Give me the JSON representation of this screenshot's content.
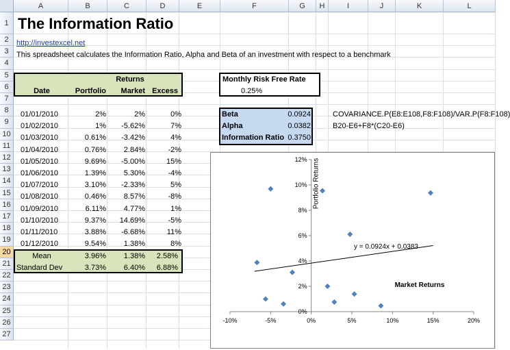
{
  "columns": [
    "A",
    "B",
    "C",
    "D",
    "E",
    "F",
    "G",
    "H",
    "I",
    "J",
    "K",
    "L"
  ],
  "rows": [
    "1",
    "2",
    "3",
    "4",
    "5",
    "6",
    "7",
    "8",
    "9",
    "10",
    "11",
    "12",
    "13",
    "14",
    "15",
    "16",
    "17",
    "18",
    "19",
    "20",
    "21",
    "22",
    "23",
    "24",
    "25",
    "26",
    "27"
  ],
  "title": "The Information Ratio",
  "link": "http://investexcel.net",
  "description": "This spreadsheet calculates the Information Ratio, Alpha and Beta of an investment with respect to a benchmark",
  "returns_header": "Returns",
  "headers": {
    "date": "Date",
    "portfolio": "Portfolio",
    "market": "Market",
    "excess": "Excess"
  },
  "data_rows": [
    {
      "date": "01/01/2010",
      "portfolio": "2%",
      "market": "2%",
      "excess": "0%"
    },
    {
      "date": "01/02/2010",
      "portfolio": "1%",
      "market": "-5.62%",
      "excess": "7%"
    },
    {
      "date": "01/03/2010",
      "portfolio": "0.61%",
      "market": "-3.42%",
      "excess": "4%"
    },
    {
      "date": "01/04/2010",
      "portfolio": "0.76%",
      "market": "2.84%",
      "excess": "-2%"
    },
    {
      "date": "01/05/2010",
      "portfolio": "9.69%",
      "market": "-5.00%",
      "excess": "15%"
    },
    {
      "date": "01/06/2010",
      "portfolio": "1.39%",
      "market": "5.30%",
      "excess": "-4%"
    },
    {
      "date": "01/07/2010",
      "portfolio": "3.10%",
      "market": "-2.33%",
      "excess": "5%"
    },
    {
      "date": "01/08/2010",
      "portfolio": "0.46%",
      "market": "8.57%",
      "excess": "-8%"
    },
    {
      "date": "01/09/2010",
      "portfolio": "6.11%",
      "market": "4.77%",
      "excess": "1%"
    },
    {
      "date": "01/10/2010",
      "portfolio": "9.37%",
      "market": "14.69%",
      "excess": "-5%"
    },
    {
      "date": "01/11/2010",
      "portfolio": "3.88%",
      "market": "-6.68%",
      "excess": "11%"
    },
    {
      "date": "01/12/2010",
      "portfolio": "9.54%",
      "market": "1.38%",
      "excess": "8%"
    }
  ],
  "mean": {
    "label": "Mean",
    "portfolio": "3.96%",
    "market": "1.38%",
    "excess": "2.58%"
  },
  "stdev": {
    "label": "Standard Dev",
    "portfolio": "3.73%",
    "market": "6.40%",
    "excess": "6.88%"
  },
  "risk_free": {
    "label": "Monthly Risk Free Rate",
    "value": "0.25%"
  },
  "stats": [
    {
      "label": "Beta",
      "value": "0.0924",
      "formula": "COVARIANCE.P(E8:E108,F8:F108)/VAR.P(F8:F108)"
    },
    {
      "label": "Alpha",
      "value": "0.0382",
      "formula": "B20-E6+F8*(C20-E6)"
    },
    {
      "label": "Information Ratio",
      "value": "0.3750",
      "formula": ""
    }
  ],
  "colors": {
    "table_fill": "#d8e4bc",
    "stats_fill": "#c5d9f1",
    "marker": "#4f81bd",
    "selected_row": "#f9d99f"
  },
  "chart_data": {
    "type": "scatter",
    "x": [
      2,
      -5.62,
      -3.42,
      2.84,
      -5.0,
      5.3,
      -2.33,
      8.57,
      4.77,
      14.69,
      -6.68,
      1.38
    ],
    "y": [
      2,
      1,
      0.61,
      0.76,
      9.69,
      1.39,
      3.1,
      0.46,
      6.11,
      9.37,
      3.88,
      9.54
    ],
    "xlabel": "Market Returns",
    "ylabel": "Portfolio Returns",
    "xlim": [
      -10,
      20
    ],
    "ylim": [
      0,
      12
    ],
    "xticks": [
      "-10%",
      "-5%",
      "0%",
      "5%",
      "10%",
      "15%",
      "20%"
    ],
    "yticks": [
      "0%",
      "2%",
      "4%",
      "6%",
      "8%",
      "10%",
      "12%"
    ],
    "trendline": {
      "label": "y = 0.0924x + 0.0383",
      "slope": 0.0924,
      "intercept": 3.83,
      "x_range": [
        -7,
        15
      ]
    },
    "grid": false,
    "legend": "none",
    "marker": "diamond"
  }
}
